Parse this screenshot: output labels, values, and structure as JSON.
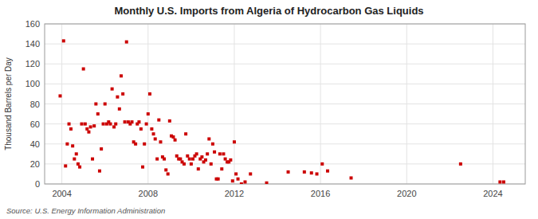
{
  "chart_data": {
    "type": "scatter",
    "title": "Monthly U.S. Imports from Algeria of Hydrocarbon Gas Liquids",
    "y_label": "Thousand Barrels per Day",
    "source": "Source: U.S. Energy Information Administration",
    "color": "#cc0000",
    "marker": "square",
    "grid": true,
    "xlim": [
      2003.2,
      2025.5
    ],
    "xticks": [
      2004,
      2008,
      2012,
      2016,
      2020,
      2024
    ],
    "ylim": [
      0,
      160
    ],
    "yticks": [
      0,
      20,
      40,
      60,
      80,
      100,
      120,
      140,
      160
    ],
    "x": [
      2003.92,
      2004.08,
      2004.17,
      2004.25,
      2004.33,
      2004.42,
      2004.5,
      2004.58,
      2004.67,
      2004.75,
      2004.83,
      2004.92,
      2005.0,
      2005.08,
      2005.17,
      2005.25,
      2005.33,
      2005.42,
      2005.5,
      2005.58,
      2005.67,
      2005.75,
      2005.83,
      2005.92,
      2006.0,
      2006.08,
      2006.17,
      2006.25,
      2006.33,
      2006.42,
      2006.5,
      2006.58,
      2006.67,
      2006.75,
      2006.83,
      2006.92,
      2007.0,
      2007.08,
      2007.17,
      2007.25,
      2007.33,
      2007.42,
      2007.5,
      2007.58,
      2007.67,
      2007.75,
      2007.83,
      2007.92,
      2008.0,
      2008.08,
      2008.17,
      2008.25,
      2008.33,
      2008.42,
      2008.5,
      2008.58,
      2008.67,
      2008.75,
      2008.83,
      2008.92,
      2009.0,
      2009.08,
      2009.17,
      2009.25,
      2009.33,
      2009.42,
      2009.5,
      2009.58,
      2009.67,
      2009.75,
      2009.83,
      2009.92,
      2010.0,
      2010.08,
      2010.17,
      2010.25,
      2010.33,
      2010.42,
      2010.5,
      2010.58,
      2010.67,
      2010.75,
      2010.83,
      2010.92,
      2011.0,
      2011.08,
      2011.17,
      2011.25,
      2011.33,
      2011.42,
      2011.5,
      2011.58,
      2011.67,
      2011.75,
      2011.83,
      2011.92,
      2012.0,
      2012.08,
      2012.17,
      2012.33,
      2012.5,
      2012.75,
      2013.5,
      2014.5,
      2015.25,
      2015.58,
      2015.83,
      2016.08,
      2016.33,
      2017.42,
      2022.5,
      2024.33,
      2024.5
    ],
    "values": [
      88,
      143,
      18,
      40,
      60,
      55,
      38,
      25,
      30,
      20,
      17,
      60,
      115,
      60,
      55,
      52,
      57,
      25,
      58,
      80,
      70,
      13,
      35,
      60,
      80,
      60,
      62,
      60,
      95,
      57,
      60,
      87,
      75,
      108,
      90,
      62,
      142,
      62,
      60,
      62,
      42,
      40,
      60,
      62,
      55,
      17,
      40,
      60,
      70,
      90,
      55,
      50,
      45,
      25,
      64,
      42,
      27,
      25,
      14,
      10,
      63,
      48,
      47,
      44,
      28,
      25,
      25,
      22,
      20,
      50,
      28,
      25,
      20,
      25,
      28,
      30,
      15,
      25,
      27,
      22,
      24,
      30,
      45,
      20,
      40,
      32,
      5,
      5,
      30,
      15,
      30,
      25,
      22,
      22,
      24,
      3,
      42,
      10,
      5,
      0,
      2,
      10,
      1,
      12,
      12,
      11,
      10,
      20,
      13,
      6,
      20,
      2,
      2
    ]
  }
}
